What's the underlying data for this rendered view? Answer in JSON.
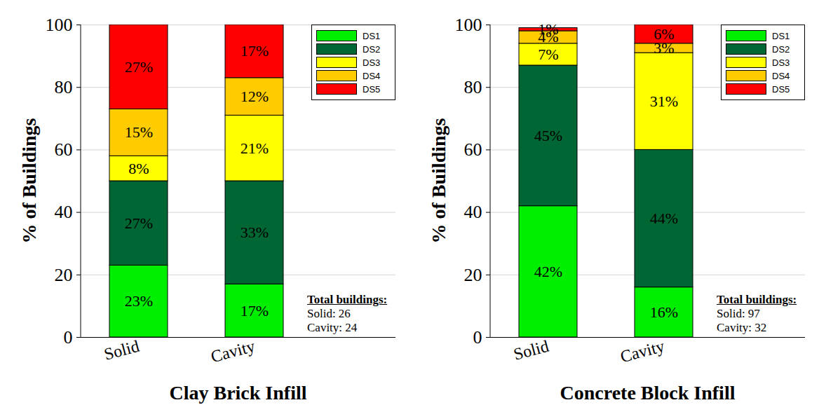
{
  "chart_data": [
    {
      "type": "bar",
      "stacked": true,
      "data_labels": true,
      "grid": true,
      "legend": "top-right",
      "x_label": "Clay Brick Infill",
      "y_label": "% of Buildings",
      "categories": [
        "Solid",
        "Cavity"
      ],
      "ylim": [
        0,
        100
      ],
      "yticks": [
        0,
        20,
        40,
        60,
        80,
        100
      ],
      "series": [
        {
          "name": "DS1",
          "color": "#00ee00",
          "values": [
            23,
            17
          ],
          "value_labels": [
            "23%",
            "17%"
          ]
        },
        {
          "name": "DS2",
          "color": "#006633",
          "values": [
            27,
            33
          ],
          "value_labels": [
            "27%",
            "33%"
          ]
        },
        {
          "name": "DS3",
          "color": "#ffff00",
          "values": [
            8,
            21
          ],
          "value_labels": [
            "8%",
            "21%"
          ]
        },
        {
          "name": "DS4",
          "color": "#ffcc00",
          "values": [
            15,
            12
          ],
          "value_labels": [
            "15%",
            "12%"
          ]
        },
        {
          "name": "DS5",
          "color": "#ff0000",
          "values": [
            27,
            17
          ],
          "value_labels": [
            "27%",
            "17%"
          ]
        }
      ],
      "annotations": [
        "Total buildings:",
        "Solid: 26",
        "Cavity: 24"
      ]
    },
    {
      "type": "bar",
      "stacked": true,
      "data_labels": true,
      "grid": true,
      "legend": "top-right",
      "x_label": "Concrete Block Infill",
      "y_label": "% of Buildings",
      "categories": [
        "Solid",
        "Cavity"
      ],
      "ylim": [
        0,
        100
      ],
      "yticks": [
        0,
        20,
        40,
        60,
        80,
        100
      ],
      "series": [
        {
          "name": "DS1",
          "color": "#00ee00",
          "values": [
            42,
            16
          ],
          "value_labels": [
            "42%",
            "16%"
          ]
        },
        {
          "name": "DS2",
          "color": "#006633",
          "values": [
            45,
            44
          ],
          "value_labels": [
            "45%",
            "44%"
          ]
        },
        {
          "name": "DS3",
          "color": "#ffff00",
          "values": [
            7,
            31
          ],
          "value_labels": [
            "7%",
            "31%"
          ]
        },
        {
          "name": "DS4",
          "color": "#ffcc00",
          "values": [
            4,
            3
          ],
          "value_labels": [
            "4%",
            "3%"
          ]
        },
        {
          "name": "DS5",
          "color": "#ff0000",
          "values": [
            1,
            6
          ],
          "value_labels": [
            "1%",
            "6%"
          ]
        }
      ],
      "annotations": [
        "Total buildings:",
        "Solid: 97",
        "Cavity: 32"
      ]
    }
  ]
}
